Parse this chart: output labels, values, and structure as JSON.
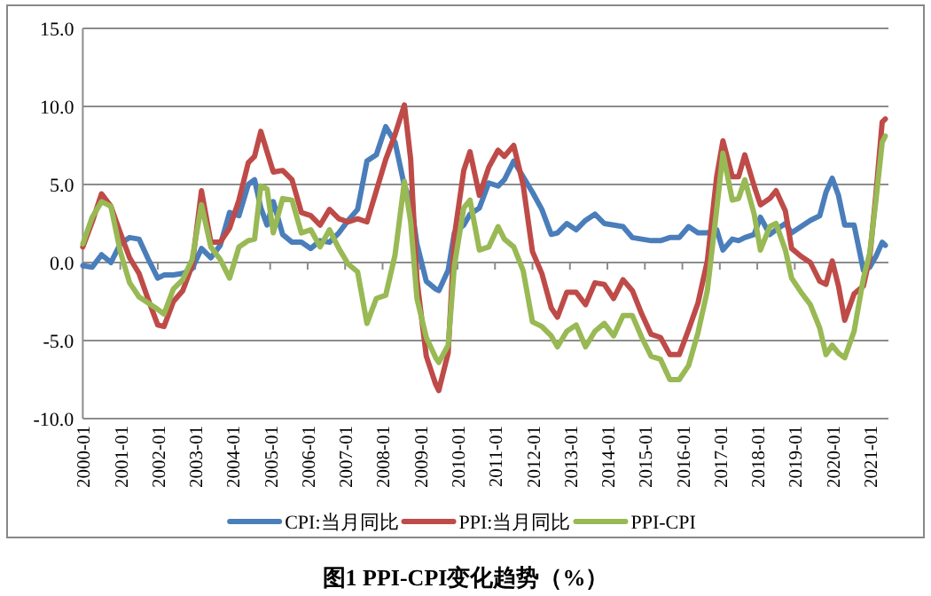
{
  "chart_data": {
    "type": "line",
    "title": "图1 PPI-CPI变化趋势（%）",
    "legend": "bottom",
    "grid": "y",
    "marker": "none",
    "line_style": "solid",
    "x": [
      "2000-01",
      "2000-04",
      "2000-07",
      "2000-10",
      "2001-01",
      "2001-04",
      "2001-07",
      "2001-10",
      "2002-01",
      "2002-03",
      "2002-06",
      "2002-09",
      "2002-12",
      "2003-03",
      "2003-06",
      "2003-09",
      "2003-12",
      "2004-03",
      "2004-06",
      "2004-08",
      "2004-10",
      "2004-12",
      "2005-02",
      "2005-05",
      "2005-08",
      "2005-11",
      "2006-02",
      "2006-05",
      "2006-08",
      "2006-11",
      "2007-02",
      "2007-05",
      "2007-08",
      "2007-11",
      "2008-02",
      "2008-05",
      "2008-08",
      "2008-10",
      "2008-12",
      "2009-03",
      "2009-06",
      "2009-07",
      "2009-10",
      "2009-12",
      "2010-03",
      "2010-05",
      "2010-08",
      "2010-11",
      "2011-02",
      "2011-04",
      "2011-07",
      "2011-10",
      "2012-01",
      "2012-04",
      "2012-07",
      "2012-09",
      "2012-12",
      "2013-03",
      "2013-06",
      "2013-09",
      "2013-12",
      "2014-03",
      "2014-06",
      "2014-09",
      "2014-12",
      "2015-03",
      "2015-06",
      "2015-09",
      "2015-12",
      "2016-03",
      "2016-06",
      "2016-09",
      "2016-12",
      "2017-02",
      "2017-05",
      "2017-07",
      "2017-09",
      "2017-12",
      "2018-02",
      "2018-05",
      "2018-07",
      "2018-10",
      "2018-12",
      "2019-03",
      "2019-06",
      "2019-09",
      "2019-11",
      "2020-01",
      "2020-03",
      "2020-05",
      "2020-08",
      "2020-11",
      "2021-01",
      "2021-03",
      "2021-05",
      "2021-06"
    ],
    "series": [
      {
        "name": "CPI:当月同比",
        "color": "#4a7ebb",
        "values": [
          -0.2,
          -0.3,
          0.5,
          0.0,
          1.2,
          1.6,
          1.5,
          0.2,
          -1.0,
          -0.8,
          -0.8,
          -0.7,
          -0.4,
          0.9,
          0.3,
          1.1,
          3.2,
          3.0,
          5.0,
          5.3,
          3.5,
          2.4,
          3.9,
          1.8,
          1.3,
          1.3,
          0.9,
          1.4,
          1.3,
          1.9,
          2.7,
          3.4,
          6.5,
          6.9,
          8.7,
          7.7,
          4.9,
          4.0,
          1.2,
          -1.2,
          -1.7,
          -1.8,
          -0.5,
          1.9,
          2.4,
          3.1,
          3.5,
          5.1,
          4.9,
          5.3,
          6.5,
          5.5,
          4.5,
          3.4,
          1.8,
          1.9,
          2.5,
          2.1,
          2.7,
          3.1,
          2.5,
          2.4,
          2.3,
          1.6,
          1.5,
          1.4,
          1.4,
          1.6,
          1.6,
          2.3,
          1.9,
          1.9,
          2.1,
          0.8,
          1.5,
          1.4,
          1.6,
          1.8,
          2.9,
          1.8,
          2.1,
          2.5,
          1.9,
          2.3,
          2.7,
          3.0,
          4.5,
          5.4,
          4.3,
          2.4,
          2.4,
          -0.5,
          -0.3,
          0.4,
          1.3,
          1.1
        ]
      },
      {
        "name": "PPI:当月同比",
        "color": "#be4b48",
        "values": [
          1.0,
          2.6,
          4.4,
          3.6,
          1.9,
          0.3,
          -0.7,
          -2.4,
          -4.0,
          -4.1,
          -2.5,
          -1.8,
          -0.2,
          4.6,
          1.3,
          1.3,
          2.2,
          4.0,
          6.4,
          6.8,
          8.4,
          7.1,
          5.8,
          5.9,
          5.3,
          3.2,
          3.0,
          2.4,
          3.4,
          2.8,
          2.6,
          2.8,
          2.6,
          4.6,
          6.6,
          8.2,
          10.1,
          6.6,
          -1.1,
          -6.0,
          -7.8,
          -8.2,
          -5.8,
          1.7,
          5.9,
          7.1,
          4.3,
          6.1,
          7.2,
          6.8,
          7.5,
          5.0,
          0.7,
          -0.7,
          -2.9,
          -3.5,
          -1.9,
          -1.9,
          -2.7,
          -1.3,
          -1.4,
          -2.3,
          -1.1,
          -1.8,
          -3.3,
          -4.6,
          -4.8,
          -5.9,
          -5.9,
          -4.3,
          -2.6,
          0.1,
          5.5,
          7.8,
          5.5,
          5.5,
          6.9,
          4.9,
          3.7,
          4.1,
          4.6,
          3.3,
          0.9,
          0.4,
          0.0,
          -1.2,
          -1.4,
          0.1,
          -1.5,
          -3.7,
          -2.0,
          -1.5,
          0.3,
          4.4,
          9.0,
          9.2
        ]
      },
      {
        "name": "PPI-CPI",
        "color": "#98b954",
        "values": [
          1.2,
          2.9,
          3.9,
          3.6,
          0.7,
          -1.3,
          -2.2,
          -2.6,
          -3.0,
          -3.3,
          -1.7,
          -1.1,
          0.2,
          3.7,
          1.0,
          0.2,
          -1.0,
          1.0,
          1.4,
          1.5,
          4.9,
          4.7,
          1.9,
          4.1,
          4.0,
          1.9,
          2.1,
          1.0,
          2.1,
          0.9,
          -0.1,
          -0.6,
          -3.9,
          -2.3,
          -2.1,
          0.5,
          5.2,
          2.6,
          -2.3,
          -4.8,
          -6.1,
          -6.4,
          -5.3,
          -0.2,
          3.5,
          4.0,
          0.8,
          1.0,
          2.3,
          1.5,
          1.0,
          -0.5,
          -3.8,
          -4.1,
          -4.7,
          -5.4,
          -4.4,
          -4.0,
          -5.4,
          -4.4,
          -3.9,
          -4.7,
          -3.4,
          -3.4,
          -4.8,
          -6.0,
          -6.2,
          -7.5,
          -7.5,
          -6.6,
          -4.5,
          -1.8,
          3.4,
          7.0,
          4.0,
          4.1,
          5.3,
          3.1,
          0.8,
          2.3,
          2.5,
          0.8,
          -1.0,
          -1.9,
          -2.7,
          -4.2,
          -5.9,
          -5.3,
          -5.8,
          -6.1,
          -4.4,
          -1.0,
          0.6,
          4.0,
          7.7,
          8.1
        ]
      }
    ],
    "xlim": [
      "2000-01",
      "2021-07"
    ],
    "xticks": [
      "2000-01",
      "2001-01",
      "2002-01",
      "2003-01",
      "2004-01",
      "2005-01",
      "2006-01",
      "2007-01",
      "2008-01",
      "2009-01",
      "2010-01",
      "2011-01",
      "2012-01",
      "2013-01",
      "2014-01",
      "2015-01",
      "2016-01",
      "2017-01",
      "2018-01",
      "2019-01",
      "2020-01",
      "2021-01"
    ],
    "ylim": [
      -10,
      15
    ],
    "yticks": [
      {
        "value": -10,
        "label": "-10.0"
      },
      {
        "value": -5,
        "label": "-5.0"
      },
      {
        "value": 0,
        "label": "0.0"
      },
      {
        "value": 5,
        "label": "5.0"
      },
      {
        "value": 10,
        "label": "10.0"
      },
      {
        "value": 15,
        "label": "15.0"
      }
    ]
  }
}
